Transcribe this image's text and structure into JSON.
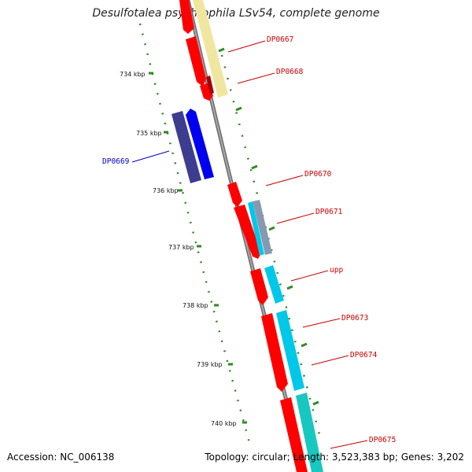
{
  "title": "Desulfotalea psychrophila LSv54, complete genome",
  "footer": {
    "accession": "Accession: NC_006138",
    "summary": "Topology: circular; Length: 3,523,383 bp; Genes: 3,202"
  },
  "colors": {
    "backbone": "#8a8a8a",
    "cds": "#ff0000",
    "blue_cds": "#0000ee",
    "dark_blue": "#3d3d8f",
    "pale_yellow": "#f0e6a0",
    "cyan": "#00c8e8",
    "teal": "#18c8c0",
    "grey_blue": "#8898b0",
    "tick": "#2e8b22",
    "label_red": "#cc0000",
    "label_blue": "#0000cc"
  },
  "kbp_ticks": [
    "734 kbp",
    "735 kbp",
    "736 kbp",
    "737 kbp",
    "738 kbp",
    "739 kbp",
    "740 kbp"
  ],
  "gene_labels": [
    {
      "name": "DP0667",
      "strand": "forward"
    },
    {
      "name": "DP0668",
      "strand": "forward"
    },
    {
      "name": "DP0669",
      "strand": "reverse"
    },
    {
      "name": "DP0670",
      "strand": "forward"
    },
    {
      "name": "DP0671",
      "strand": "forward"
    },
    {
      "name": "upp",
      "strand": "forward"
    },
    {
      "name": "DP0673",
      "strand": "forward"
    },
    {
      "name": "DP0674",
      "strand": "forward"
    },
    {
      "name": "DP0675",
      "strand": "forward"
    }
  ]
}
